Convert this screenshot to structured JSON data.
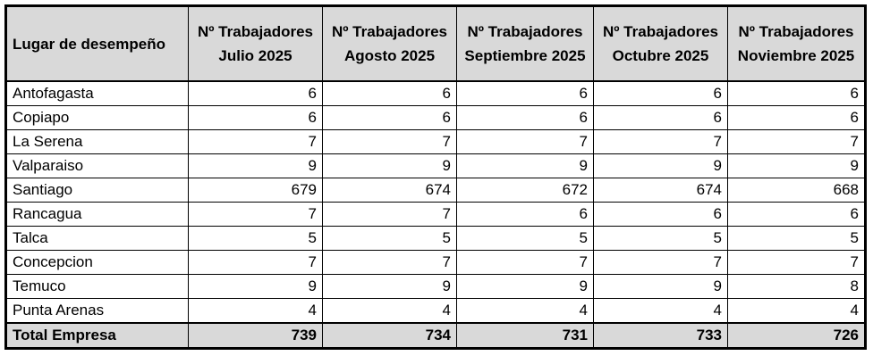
{
  "table": {
    "headers": [
      "Lugar de desempeño",
      "Nº Trabajadores Julio 2025",
      "Nº Trabajadores Agosto 2025",
      "Nº Trabajadores Septiembre 2025",
      "Nº Trabajadores Octubre 2025",
      "Nº Trabajadores Noviembre 2025"
    ],
    "rows": [
      [
        "Antofagasta",
        "6",
        "6",
        "6",
        "6",
        "6"
      ],
      [
        "Copiapo",
        "6",
        "6",
        "6",
        "6",
        "6"
      ],
      [
        "La Serena",
        "7",
        "7",
        "7",
        "7",
        "7"
      ],
      [
        "Valparaiso",
        "9",
        "9",
        "9",
        "9",
        "9"
      ],
      [
        "Santiago",
        "679",
        "674",
        "672",
        "674",
        "668"
      ],
      [
        "Rancagua",
        "7",
        "7",
        "6",
        "6",
        "6"
      ],
      [
        "Talca",
        "5",
        "5",
        "5",
        "5",
        "5"
      ],
      [
        "Concepcion",
        "7",
        "7",
        "7",
        "7",
        "7"
      ],
      [
        "Temuco",
        "9",
        "9",
        "9",
        "9",
        "8"
      ],
      [
        "Punta Arenas",
        "4",
        "4",
        "4",
        "4",
        "4"
      ]
    ],
    "total": [
      "Total Empresa",
      "739",
      "734",
      "731",
      "733",
      "726"
    ]
  },
  "colors": {
    "header_bg": "#d9d9d9",
    "total_bg": "#d9d9d9",
    "border": "#000000"
  }
}
